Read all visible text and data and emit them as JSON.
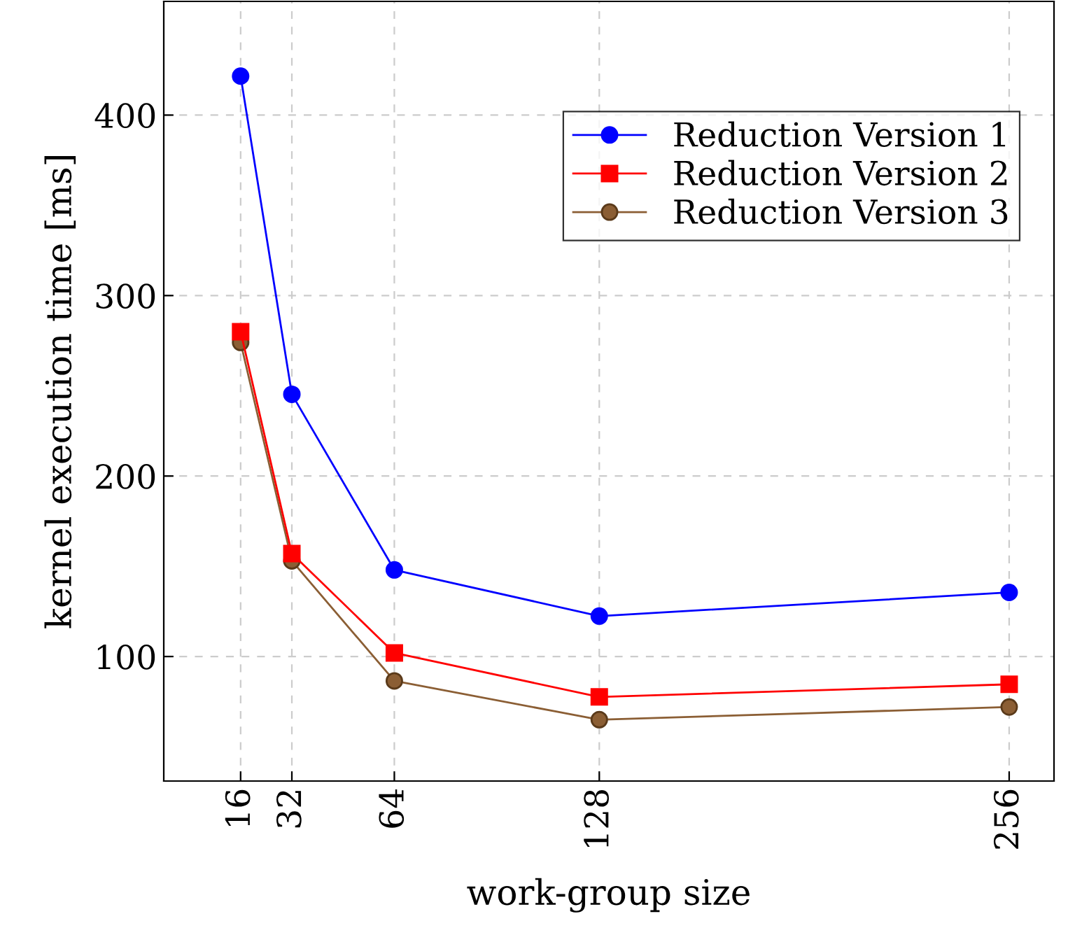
{
  "chart_data": {
    "type": "line",
    "xlabel": "work-group size",
    "ylabel": "kernel execution time [ms]",
    "x": [
      16,
      32,
      64,
      128,
      256
    ],
    "xlim": [
      -8,
      270
    ],
    "xticks": [
      16,
      32,
      64,
      128,
      256
    ],
    "ylim": [
      31,
      463
    ],
    "yticks": [
      100,
      200,
      300,
      400
    ],
    "grid": true,
    "legend": "top right",
    "line_style": "solid",
    "series": [
      {
        "name": "Reduction Version 1",
        "color": "#0000ff",
        "marker": "circle",
        "values": [
          421.6,
          245.3,
          148,
          122.4,
          135.5
        ]
      },
      {
        "name": "Reduction Version 2",
        "color": "#ff0000",
        "marker": "square",
        "values": [
          280,
          157,
          102,
          77.6,
          84.6
        ]
      },
      {
        "name": "Reduction Version 3",
        "color": "#8b5e34",
        "marker": "circle",
        "values": [
          274,
          153,
          86.5,
          65,
          72
        ]
      }
    ]
  }
}
